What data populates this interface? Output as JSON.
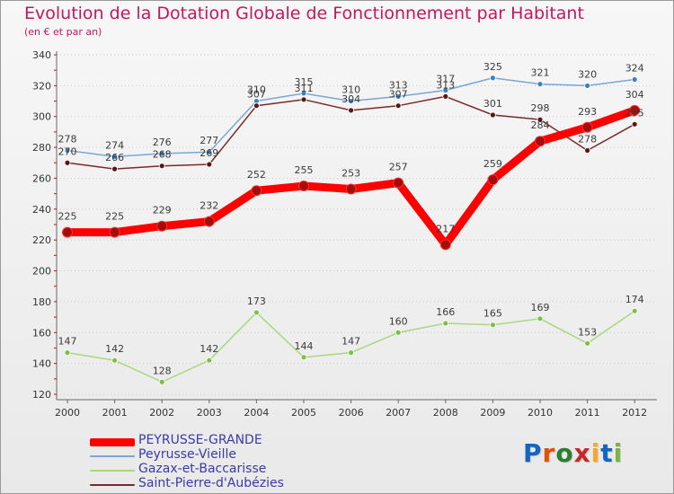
{
  "title": "Evolution de la Dotation Globale de Fonctionnement par Habitant",
  "subtitle": "(en € et par an)",
  "logo": {
    "letters": [
      "P",
      "r",
      "o",
      "x",
      "i",
      "t",
      "i"
    ],
    "colors": [
      "#1565c0",
      "#e65100",
      "#2e7d32",
      "#c62828",
      "#f9a825",
      "#1565c0",
      "#7cb342"
    ]
  },
  "chart_data": {
    "type": "line",
    "title": "Evolution de la Dotation Globale de Fonctionnement par Habitant",
    "subtitle": "(en € et par an)",
    "xlabel": "",
    "ylabel": "",
    "x": [
      "2000",
      "2001",
      "2002",
      "2003",
      "2004",
      "2005",
      "2006",
      "2007",
      "2008",
      "2009",
      "2010",
      "2011",
      "2012"
    ],
    "ylim": [
      120,
      340
    ],
    "yticks": [
      120,
      140,
      160,
      180,
      200,
      220,
      240,
      260,
      280,
      300,
      320,
      340
    ],
    "grid": "horizontal-dotted",
    "legend_position": "bottom-left",
    "series": [
      {
        "name": "PEYRUSSE-GRANDE",
        "values": [
          225,
          225,
          229,
          232,
          252,
          255,
          253,
          257,
          217,
          259,
          284,
          293,
          304
        ],
        "labels": [
          "225",
          "225",
          "229",
          "232",
          "252",
          "255",
          "253",
          "257",
          "217",
          "259",
          "284",
          "293",
          "304"
        ],
        "color": "#ff0000",
        "marker": "#a50d0d",
        "width": 9
      },
      {
        "name": "Peyrusse-Vieille",
        "values": [
          278,
          274,
          276,
          277,
          310,
          315,
          310,
          313,
          317,
          325,
          321,
          320,
          324
        ],
        "labels": [
          "278",
          "274",
          "276",
          "277",
          "310",
          "315",
          "310",
          "313",
          "317",
          "325",
          "321",
          "320",
          "324"
        ],
        "color": "#7aa6d6",
        "marker": "#3d7fc1",
        "width": 1.5
      },
      {
        "name": "Gazax-et-Baccarisse",
        "values": [
          147,
          142,
          128,
          142,
          173,
          144,
          147,
          160,
          166,
          165,
          169,
          153,
          174
        ],
        "labels": [
          "147",
          "142",
          "128",
          "142",
          "173",
          "144",
          "147",
          "160",
          "166",
          "165",
          "169",
          "153",
          "174"
        ],
        "color": "#a8d87c",
        "marker": "#7cc043",
        "width": 1.5
      },
      {
        "name": "Saint-Pierre-d'Aubézies",
        "values": [
          270,
          266,
          268,
          269,
          307,
          311,
          304,
          307,
          313,
          301,
          298,
          278,
          295
        ],
        "labels": [
          "270",
          "266",
          "268",
          "269",
          "307",
          "311",
          "304",
          "307",
          "313",
          "301",
          "298",
          "278",
          "295"
        ],
        "color": "#7a2a2a",
        "marker": "#5a1616",
        "width": 1.5
      }
    ]
  }
}
